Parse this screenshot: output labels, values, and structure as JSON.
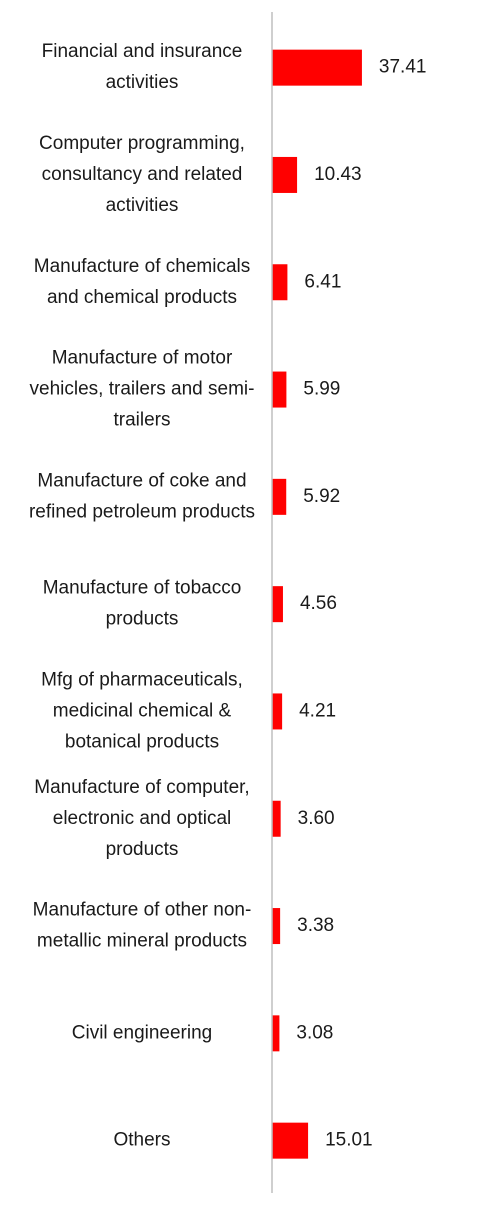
{
  "chart_data": {
    "type": "bar",
    "orientation": "horizontal",
    "categories": [
      [
        "Financial and insurance",
        "activities"
      ],
      [
        "Computer programming,",
        "consultancy and related",
        "activities"
      ],
      [
        "Manufacture of chemicals",
        "and chemical products"
      ],
      [
        "Manufacture of motor",
        "vehicles, trailers and semi-",
        "trailers"
      ],
      [
        "Manufacture of coke and",
        "refined petroleum products"
      ],
      [
        "Manufacture of tobacco",
        "products"
      ],
      [
        "Mfg of pharmaceuticals,",
        "medicinal chemical &",
        "botanical products"
      ],
      [
        "Manufacture of computer,",
        "electronic and optical",
        "products"
      ],
      [
        "Manufacture of other non-",
        "metallic mineral products"
      ],
      [
        "Civil engineering"
      ],
      [
        "Others"
      ]
    ],
    "values": [
      37.41,
      10.43,
      6.41,
      5.99,
      5.92,
      4.56,
      4.21,
      3.6,
      3.38,
      3.08,
      15.01
    ],
    "value_labels": [
      "37.41",
      "10.43",
      "6.41",
      "5.99",
      "5.92",
      "4.56",
      "4.21",
      "3.60",
      "3.38",
      "3.08",
      "15.01"
    ],
    "bar_color": "#ff0000",
    "axis_color": "#bfbfbf",
    "xlim": [
      0,
      42
    ],
    "grid": false,
    "legend": "none"
  }
}
